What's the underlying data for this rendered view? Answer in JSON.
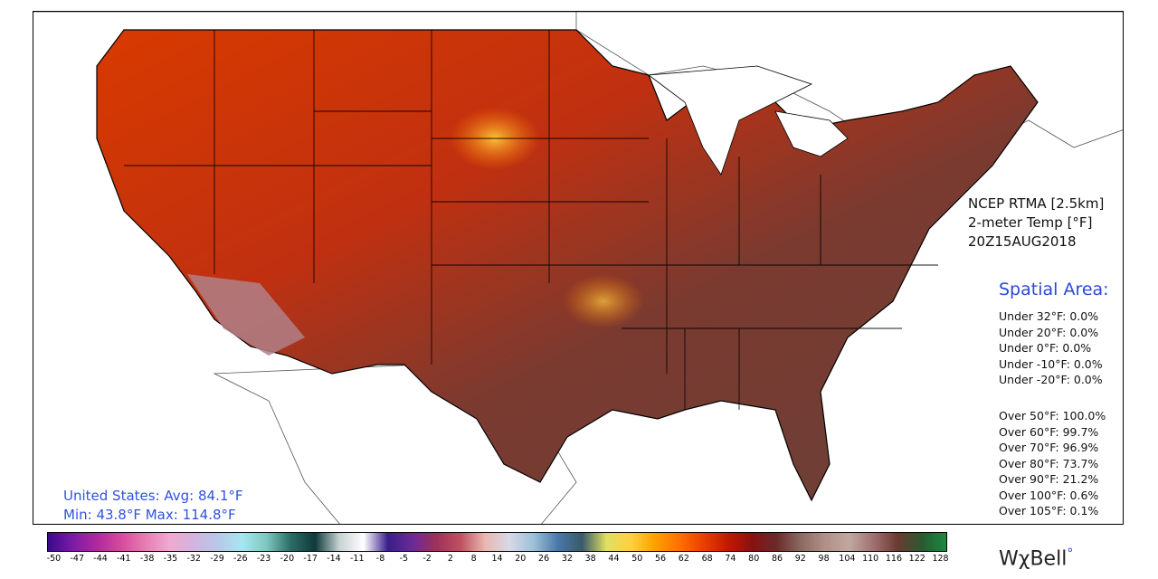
{
  "product": {
    "line1": "NCEP RTMA [2.5km]",
    "line2": "2-meter Temp [°F]",
    "line3": "20Z15AUG2018"
  },
  "spatial": {
    "title": "Spatial Area:",
    "under": [
      "Under 32°F: 0.0%",
      "Under 20°F: 0.0%",
      "Under 0°F: 0.0%",
      "Under -10°F: 0.0%",
      "Under -20°F: 0.0%"
    ],
    "over": [
      "Over 50°F: 100.0%",
      "Over 60°F: 99.7%",
      "Over 70°F: 96.9%",
      "Over 80°F: 73.7%",
      "Over 90°F: 21.2%",
      "Over 100°F: 0.6%",
      "Over 105°F: 0.1%"
    ]
  },
  "average": {
    "line1": "United States: Avg:  84.1°F",
    "line2": "Min:  43.8°F Max: 114.8°F"
  },
  "colorbar": {
    "ticks": [
      "-50",
      "-47",
      "-44",
      "-41",
      "-38",
      "-35",
      "-32",
      "-29",
      "-26",
      "-23",
      "-20",
      "-17",
      "-14",
      "-11",
      "-8",
      "-5",
      "-2",
      "2",
      "8",
      "14",
      "20",
      "26",
      "32",
      "38",
      "44",
      "50",
      "56",
      "62",
      "68",
      "74",
      "80",
      "86",
      "92",
      "98",
      "104",
      "110",
      "116",
      "122",
      "128"
    ],
    "colors": [
      "#3a0a8c",
      "#7a1aa8",
      "#b0279e",
      "#d8499c",
      "#e87cb3",
      "#f0a9cf",
      "#d2b4df",
      "#b8c8e8",
      "#a6e6f0",
      "#7cc8c0",
      "#2d6b66",
      "#0e3a3a",
      "#c8d2d2",
      "#ffffff",
      "#3a1e8a",
      "#6a2a98",
      "#a0305a",
      "#c05060",
      "#e8b8b0",
      "#d8d8e8",
      "#9cc0d8",
      "#4a78a8",
      "#3a5a6a",
      "#e0e060",
      "#ffd040",
      "#ffa000",
      "#ff7000",
      "#e84000",
      "#c01a00",
      "#8a1010",
      "#6a2a2a",
      "#8a6a60",
      "#b09088",
      "#c0a8a0",
      "#a07070",
      "#6a3a30",
      "#2a5a30",
      "#1a8a40"
    ]
  },
  "logo": {
    "text": "WχBell"
  }
}
